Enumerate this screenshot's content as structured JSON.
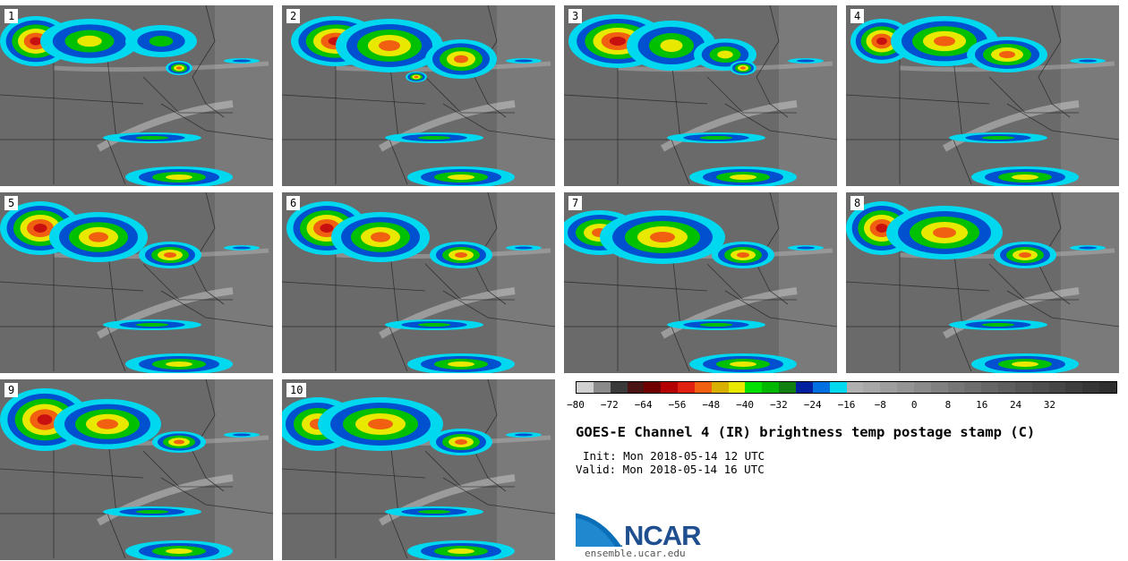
{
  "panels": [
    {
      "label": "1"
    },
    {
      "label": "2"
    },
    {
      "label": "3"
    },
    {
      "label": "4"
    },
    {
      "label": "5"
    },
    {
      "label": "6"
    },
    {
      "label": "7"
    },
    {
      "label": "8"
    },
    {
      "label": "9"
    },
    {
      "label": "10"
    }
  ],
  "colorbar": {
    "colors": [
      "#d0d0d0",
      "#8a8a8a",
      "#3a3a3a",
      "#4a1414",
      "#700000",
      "#b40000",
      "#e02010",
      "#f06010",
      "#d8b000",
      "#e8e800",
      "#00e000",
      "#00b800",
      "#108010",
      "#0020a0",
      "#0070e0",
      "#00d8f0",
      "#b0b0b0",
      "#a8a8a8",
      "#9e9e9e",
      "#949494",
      "#8a8a8a",
      "#808080",
      "#767676",
      "#6e6e6e",
      "#666666",
      "#5e5e5e",
      "#565656",
      "#4e4e4e",
      "#464646",
      "#3e3e3e",
      "#363636",
      "#2e2e2e"
    ],
    "ticks": [
      "−80",
      "−72",
      "−64",
      "−56",
      "−48",
      "−40",
      "−32",
      "−24",
      "−16",
      "−8",
      "0",
      "8",
      "16",
      "24",
      "32"
    ]
  },
  "title": "GOES-E Channel 4 (IR) brightness temp postage stamp (C)",
  "init": "Init: Mon 2018-05-14 12 UTC",
  "valid": "Valid: Mon 2018-05-14 16 UTC",
  "logo": {
    "text": "NCAR",
    "url": "ensemble.ucar.edu",
    "color": "#1f4f8f"
  }
}
